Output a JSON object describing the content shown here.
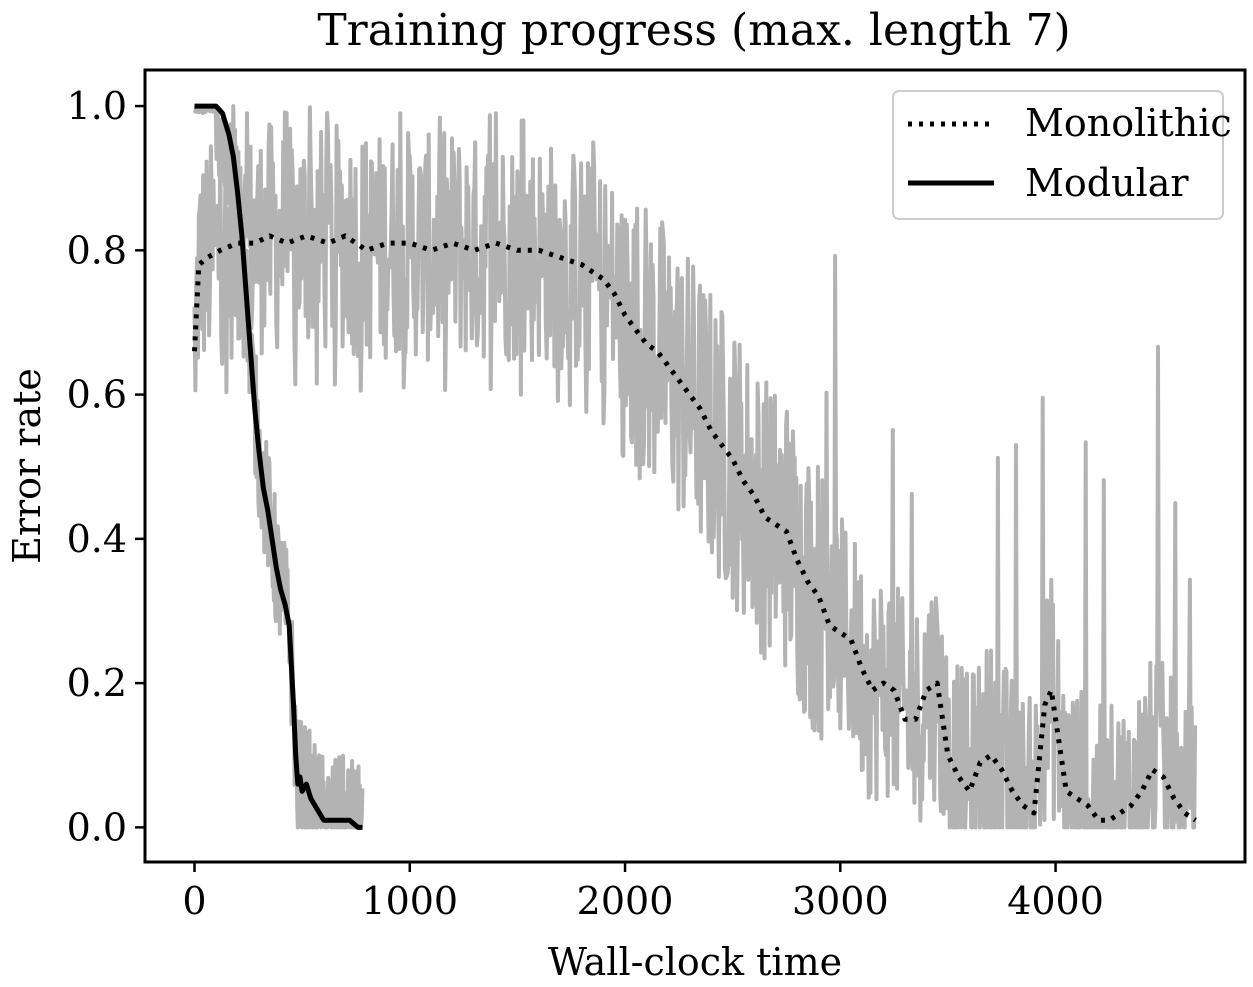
{
  "chart_data": {
    "type": "line",
    "title": "Training progress (max. length 7)",
    "xlabel": "Wall-clock time",
    "ylabel": "Error rate",
    "xlim": [
      -230,
      4880
    ],
    "ylim": [
      -0.048,
      1.05
    ],
    "xticks": [
      0,
      1000,
      2000,
      3000,
      4000
    ],
    "xtick_labels": [
      "0",
      "1000",
      "2000",
      "3000",
      "4000"
    ],
    "yticks": [
      0.0,
      0.2,
      0.4,
      0.6,
      0.8,
      1.0
    ],
    "ytick_labels": [
      "0.0",
      "0.2",
      "0.4",
      "0.6",
      "0.8",
      "1.0"
    ],
    "legend": {
      "position": "top-right",
      "entries": [
        "Monolithic",
        "Modular"
      ]
    },
    "raw_color": "#b3b3b3",
    "line_color": "#000000",
    "series": [
      {
        "name": "Monolithic",
        "style": "dotted",
        "x": [
          0,
          20,
          60,
          120,
          200,
          280,
          350,
          430,
          520,
          620,
          700,
          800,
          900,
          1000,
          1100,
          1200,
          1300,
          1400,
          1500,
          1600,
          1700,
          1800,
          1900,
          1950,
          2000,
          2050,
          2100,
          2150,
          2200,
          2250,
          2300,
          2350,
          2400,
          2450,
          2500,
          2550,
          2600,
          2650,
          2700,
          2750,
          2800,
          2850,
          2900,
          2950,
          3000,
          3050,
          3100,
          3150,
          3200,
          3250,
          3300,
          3350,
          3400,
          3450,
          3500,
          3550,
          3600,
          3650,
          3700,
          3750,
          3800,
          3850,
          3900,
          3950,
          3980,
          4000,
          4050,
          4100,
          4150,
          4200,
          4250,
          4300,
          4350,
          4400,
          4450,
          4500,
          4550,
          4600,
          4650
        ],
        "raw_values": [
          0.66,
          0.78,
          0.79,
          0.8,
          0.81,
          0.81,
          0.82,
          0.81,
          0.82,
          0.81,
          0.82,
          0.8,
          0.81,
          0.81,
          0.8,
          0.81,
          0.8,
          0.81,
          0.8,
          0.8,
          0.79,
          0.78,
          0.76,
          0.74,
          0.71,
          0.69,
          0.67,
          0.66,
          0.64,
          0.62,
          0.6,
          0.58,
          0.55,
          0.53,
          0.51,
          0.48,
          0.46,
          0.43,
          0.42,
          0.41,
          0.37,
          0.34,
          0.32,
          0.28,
          0.27,
          0.26,
          0.22,
          0.19,
          0.2,
          0.19,
          0.15,
          0.15,
          0.19,
          0.2,
          0.1,
          0.07,
          0.05,
          0.09,
          0.1,
          0.08,
          0.05,
          0.03,
          0.02,
          0.17,
          0.19,
          0.15,
          0.05,
          0.04,
          0.03,
          0.01,
          0.01,
          0.02,
          0.03,
          0.05,
          0.08,
          0.07,
          0.04,
          0.02,
          0.01
        ],
        "values": [
          0.66,
          0.78,
          0.79,
          0.8,
          0.81,
          0.81,
          0.82,
          0.81,
          0.82,
          0.81,
          0.82,
          0.8,
          0.81,
          0.81,
          0.8,
          0.81,
          0.8,
          0.81,
          0.8,
          0.8,
          0.79,
          0.78,
          0.76,
          0.74,
          0.71,
          0.69,
          0.67,
          0.66,
          0.64,
          0.62,
          0.6,
          0.58,
          0.55,
          0.53,
          0.51,
          0.48,
          0.46,
          0.43,
          0.42,
          0.41,
          0.37,
          0.34,
          0.32,
          0.28,
          0.27,
          0.26,
          0.22,
          0.19,
          0.2,
          0.19,
          0.15,
          0.15,
          0.19,
          0.2,
          0.1,
          0.07,
          0.05,
          0.09,
          0.1,
          0.08,
          0.05,
          0.03,
          0.02,
          0.17,
          0.19,
          0.15,
          0.05,
          0.04,
          0.03,
          0.01,
          0.01,
          0.02,
          0.03,
          0.05,
          0.08,
          0.07,
          0.04,
          0.02,
          0.01
        ]
      },
      {
        "name": "Modular",
        "style": "solid",
        "x": [
          0,
          50,
          100,
          130,
          160,
          180,
          200,
          220,
          240,
          260,
          280,
          300,
          320,
          340,
          360,
          380,
          400,
          420,
          440,
          460,
          470,
          480,
          490,
          500,
          520,
          540,
          560,
          580,
          600,
          640,
          680,
          720,
          760,
          780
        ],
        "raw_values": [
          1.0,
          1.0,
          1.0,
          0.99,
          0.96,
          0.93,
          0.88,
          0.82,
          0.74,
          0.66,
          0.58,
          0.52,
          0.47,
          0.44,
          0.4,
          0.36,
          0.33,
          0.31,
          0.28,
          0.17,
          0.1,
          0.06,
          0.07,
          0.05,
          0.06,
          0.04,
          0.03,
          0.02,
          0.01,
          0.01,
          0.01,
          0.01,
          0.0,
          0.0
        ],
        "values": [
          1.0,
          1.0,
          1.0,
          0.99,
          0.96,
          0.93,
          0.88,
          0.82,
          0.74,
          0.66,
          0.58,
          0.52,
          0.47,
          0.44,
          0.4,
          0.36,
          0.33,
          0.31,
          0.28,
          0.17,
          0.1,
          0.06,
          0.07,
          0.05,
          0.06,
          0.04,
          0.03,
          0.02,
          0.01,
          0.01,
          0.01,
          0.01,
          0.0,
          0.0
        ]
      }
    ]
  }
}
